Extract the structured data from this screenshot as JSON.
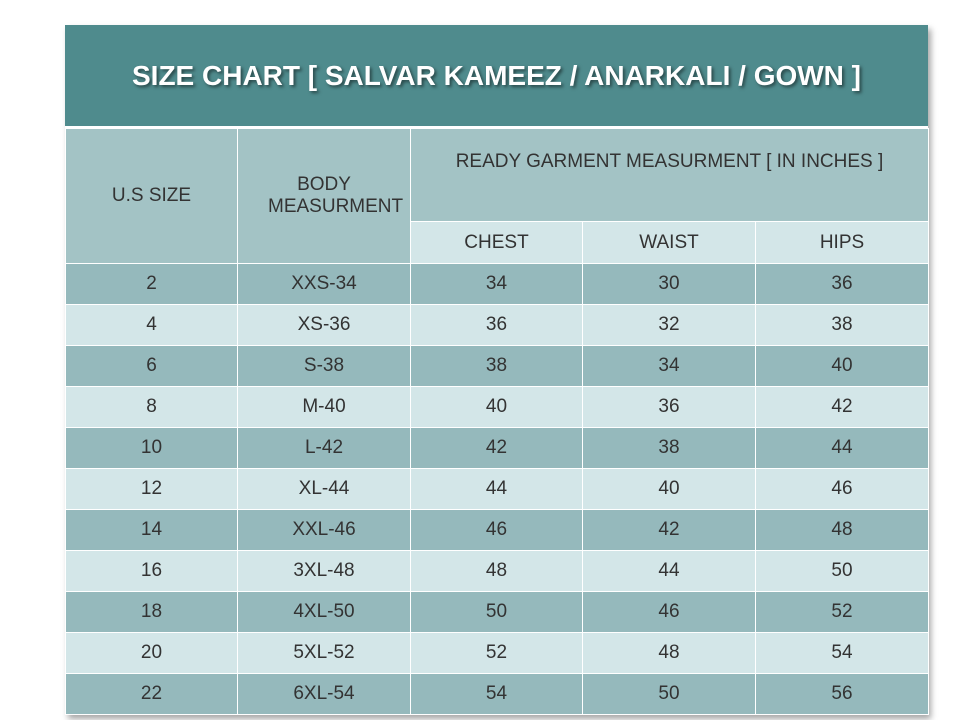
{
  "title": "SIZE CHART [ SALVAR KAMEEZ / ANARKALI / GOWN ]",
  "table": {
    "headers": {
      "size": "U.S SIZE",
      "body": "BODY MEASURMENT",
      "group": "READY GARMENT MEASURMENT [ IN INCHES ]",
      "sub": [
        "CHEST",
        "WAIST",
        "HIPS"
      ]
    },
    "rows": [
      [
        2,
        "XXS-34",
        34,
        30,
        36
      ],
      [
        4,
        "XS-36",
        36,
        32,
        38
      ],
      [
        6,
        "S-38",
        38,
        34,
        40
      ],
      [
        8,
        "M-40",
        40,
        36,
        42
      ],
      [
        10,
        "L-42",
        42,
        38,
        44
      ],
      [
        12,
        "XL-44",
        44,
        40,
        46
      ],
      [
        14,
        "XXL-46",
        46,
        42,
        48
      ],
      [
        16,
        "3XL-48",
        48,
        44,
        50
      ],
      [
        18,
        "4XL-50",
        50,
        46,
        52
      ],
      [
        20,
        "5XL-52",
        52,
        48,
        54
      ],
      [
        22,
        "6XL-54",
        54,
        50,
        56
      ]
    ]
  }
}
